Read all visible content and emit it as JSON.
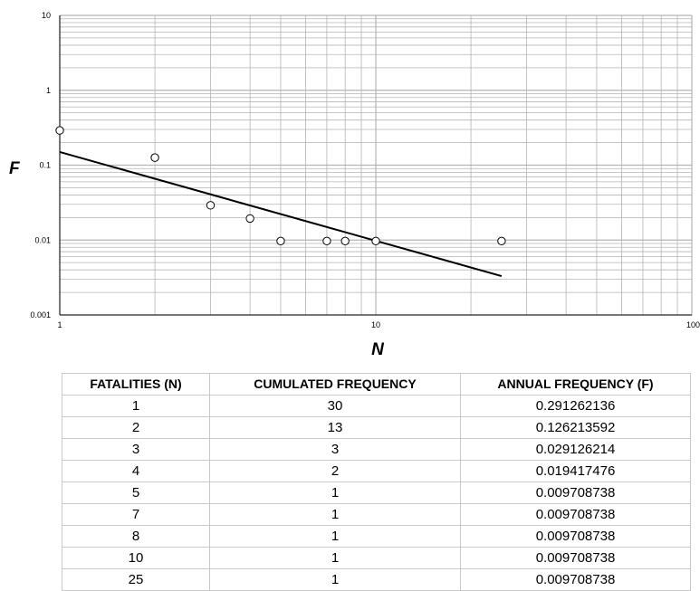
{
  "chart_data": {
    "type": "scatter",
    "xlabel": "N",
    "ylabel": "F",
    "xscale": "log",
    "yscale": "log",
    "xlim": [
      1,
      100
    ],
    "ylim": [
      0.001,
      10
    ],
    "grid": true,
    "x_ticks": [
      "1",
      "10",
      "100"
    ],
    "y_ticks": [
      "10",
      "1",
      "0.1",
      "0.01",
      "0.001"
    ],
    "points": [
      {
        "x": 1,
        "y": 0.291262136
      },
      {
        "x": 2,
        "y": 0.126213592
      },
      {
        "x": 3,
        "y": 0.029126214
      },
      {
        "x": 4,
        "y": 0.019417476
      },
      {
        "x": 5,
        "y": 0.009708738
      },
      {
        "x": 7,
        "y": 0.009708738
      },
      {
        "x": 8,
        "y": 0.009708738
      },
      {
        "x": 10,
        "y": 0.009708738
      },
      {
        "x": 25,
        "y": 0.009708738
      }
    ],
    "trendline": {
      "x": [
        1,
        25
      ],
      "y": [
        0.15,
        0.0033
      ]
    }
  },
  "table": {
    "headers": [
      "FATALITIES (N)",
      "CUMULATED FREQUENCY",
      "ANNUAL FREQUENCY (F)"
    ],
    "rows": [
      [
        "1",
        "30",
        "0.291262136"
      ],
      [
        "2",
        "13",
        "0.126213592"
      ],
      [
        "3",
        "3",
        "0.029126214"
      ],
      [
        "4",
        "2",
        "0.019417476"
      ],
      [
        "5",
        "1",
        "0.009708738"
      ],
      [
        "7",
        "1",
        "0.009708738"
      ],
      [
        "8",
        "1",
        "0.009708738"
      ],
      [
        "10",
        "1",
        "0.009708738"
      ],
      [
        "25",
        "1",
        "0.009708738"
      ]
    ]
  },
  "colors": {
    "grid": "#b4b4b4",
    "axis": "#000000",
    "marker_fill": "#ffffff",
    "trendline": "#000000"
  }
}
